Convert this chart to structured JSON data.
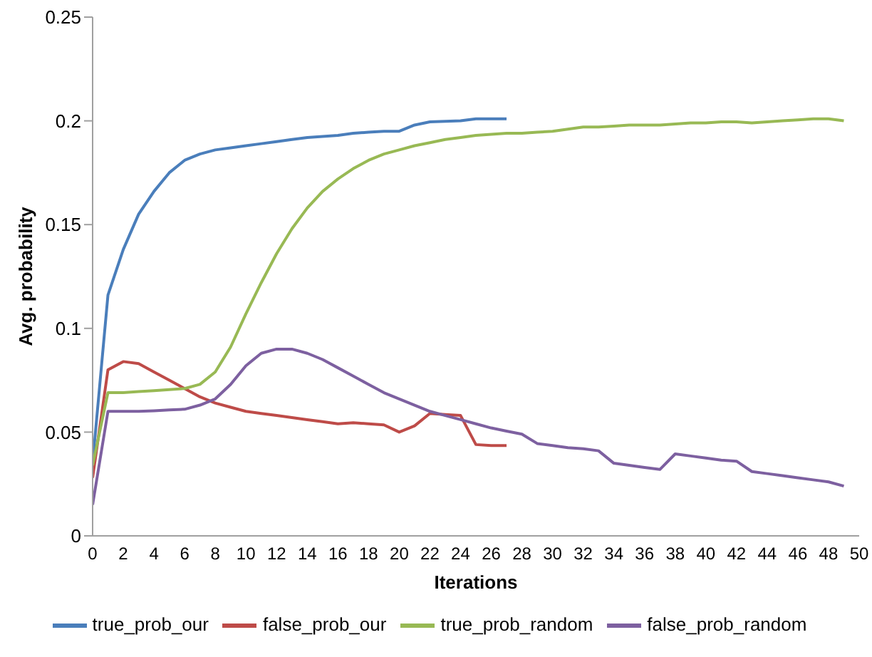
{
  "chart_data": {
    "type": "line",
    "xlabel": "Iterations",
    "ylabel": "Avg. probability",
    "x": [
      0,
      1,
      2,
      3,
      4,
      5,
      6,
      7,
      8,
      9,
      10,
      11,
      12,
      13,
      14,
      15,
      16,
      17,
      18,
      19,
      20,
      21,
      22,
      23,
      24,
      25,
      26,
      27,
      28,
      29,
      30,
      31,
      32,
      33,
      34,
      35,
      36,
      37,
      38,
      39,
      40,
      41,
      42,
      43,
      44,
      45,
      46,
      47,
      48,
      49
    ],
    "series": [
      {
        "name": "true_prob_our",
        "color": "#4a7ebb",
        "values": [
          0.035,
          0.116,
          0.138,
          0.155,
          0.166,
          0.175,
          0.181,
          0.184,
          0.186,
          0.187,
          0.188,
          0.189,
          0.19,
          0.191,
          0.192,
          0.1925,
          0.193,
          0.194,
          0.1945,
          0.195,
          0.195,
          0.198,
          0.1995,
          0.1998,
          0.2,
          0.201,
          0.201,
          0.201,
          null,
          null,
          null,
          null,
          null,
          null,
          null,
          null,
          null,
          null,
          null,
          null,
          null,
          null,
          null,
          null,
          null,
          null,
          null,
          null,
          null,
          null
        ]
      },
      {
        "name": "false_prob_our",
        "color": "#be4b48",
        "values": [
          0.028,
          0.08,
          0.084,
          0.083,
          0.079,
          0.075,
          0.071,
          0.067,
          0.064,
          0.062,
          0.06,
          0.059,
          0.058,
          0.057,
          0.056,
          0.055,
          0.054,
          0.0545,
          0.054,
          0.0535,
          0.05,
          0.053,
          0.059,
          0.0585,
          0.058,
          0.044,
          0.0435,
          0.0435,
          null,
          null,
          null,
          null,
          null,
          null,
          null,
          null,
          null,
          null,
          null,
          null,
          null,
          null,
          null,
          null,
          null,
          null,
          null,
          null,
          null,
          null
        ]
      },
      {
        "name": "true_prob_random",
        "color": "#98b954",
        "values": [
          0.034,
          0.069,
          0.069,
          0.0695,
          0.07,
          0.0705,
          0.071,
          0.073,
          0.079,
          0.091,
          0.107,
          0.122,
          0.136,
          0.148,
          0.158,
          0.166,
          0.172,
          0.177,
          0.181,
          0.184,
          0.186,
          0.188,
          0.1895,
          0.191,
          0.192,
          0.193,
          0.1935,
          0.194,
          0.194,
          0.1945,
          0.195,
          0.196,
          0.197,
          0.197,
          0.1975,
          0.198,
          0.198,
          0.198,
          0.1985,
          0.199,
          0.199,
          0.1995,
          0.1995,
          0.199,
          0.1995,
          0.2,
          0.2005,
          0.201,
          0.201,
          0.2
        ]
      },
      {
        "name": "false_prob_random",
        "color": "#7d60a0",
        "values": [
          0.015,
          0.06,
          0.06,
          0.06,
          0.0603,
          0.0607,
          0.061,
          0.063,
          0.066,
          0.073,
          0.082,
          0.088,
          0.09,
          0.09,
          0.088,
          0.085,
          0.081,
          0.077,
          0.073,
          0.069,
          0.066,
          0.063,
          0.06,
          0.058,
          0.056,
          0.054,
          0.052,
          0.0505,
          0.049,
          0.0445,
          0.0435,
          0.0425,
          0.042,
          0.041,
          0.035,
          0.034,
          0.033,
          0.032,
          0.0395,
          0.0385,
          0.0375,
          0.0365,
          0.036,
          0.031,
          0.03,
          0.029,
          0.028,
          0.027,
          0.026,
          0.024
        ]
      }
    ],
    "xlim": [
      0,
      50
    ],
    "xticks": [
      0,
      2,
      4,
      6,
      8,
      10,
      12,
      14,
      16,
      18,
      20,
      22,
      24,
      26,
      28,
      30,
      32,
      34,
      36,
      38,
      40,
      42,
      44,
      46,
      48,
      50
    ],
    "ylim": [
      0,
      0.25
    ],
    "yticks": [
      0,
      0.05,
      0.1,
      0.15,
      0.2,
      0.25
    ],
    "grid": false,
    "legend": "bottom",
    "marker": "none",
    "line_style": "solid"
  }
}
